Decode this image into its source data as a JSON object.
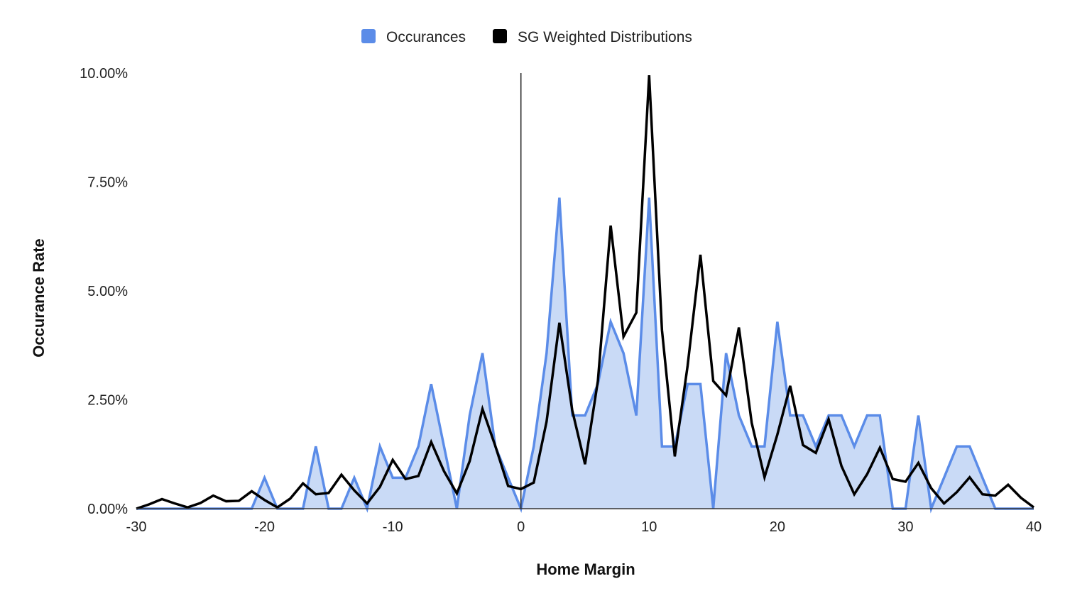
{
  "chart_data": {
    "type": "area",
    "title": "",
    "xlabel": "Home Margin",
    "ylabel": "Occurance Rate",
    "xlim": [
      -30,
      40
    ],
    "ylim": [
      0,
      10
    ],
    "x_ticks": [
      -30,
      -20,
      -10,
      0,
      10,
      20,
      30,
      40
    ],
    "y_ticks": [
      0,
      2.5,
      5,
      7.5,
      10
    ],
    "y_tick_labels": [
      "0.00%",
      "2.50%",
      "5.00%",
      "7.50%",
      "10.00%"
    ],
    "legend_position": "top",
    "grid": false,
    "vertical_reference_line": 0,
    "series": [
      {
        "name": "Occurances",
        "type": "area",
        "color": "#5b8ce8",
        "fill": "#c9daf6",
        "x": [
          -30,
          -29,
          -28,
          -27,
          -26,
          -25,
          -24,
          -23,
          -22,
          -21,
          -20,
          -19,
          -18,
          -17,
          -16,
          -15,
          -14,
          -13,
          -12,
          -11,
          -10,
          -9,
          -8,
          -7,
          -6,
          -5,
          -4,
          -3,
          -2,
          -1,
          0,
          1,
          2,
          3,
          4,
          5,
          6,
          7,
          8,
          9,
          10,
          11,
          12,
          13,
          14,
          15,
          16,
          17,
          18,
          19,
          20,
          21,
          22,
          23,
          24,
          25,
          26,
          27,
          28,
          29,
          30,
          31,
          32,
          33,
          34,
          35,
          36,
          37,
          38,
          39,
          40
        ],
        "values": [
          0,
          0,
          0,
          0,
          0,
          0,
          0,
          0,
          0,
          0,
          0.71,
          0,
          0,
          0,
          1.43,
          0,
          0,
          0.71,
          0,
          1.43,
          0.71,
          0.71,
          1.43,
          2.86,
          1.43,
          0,
          2.14,
          3.57,
          1.43,
          0.71,
          0,
          1.43,
          3.57,
          7.14,
          2.14,
          2.14,
          2.86,
          4.29,
          3.57,
          2.14,
          7.14,
          1.43,
          1.43,
          2.86,
          2.86,
          0,
          3.57,
          2.14,
          1.43,
          1.43,
          4.29,
          2.14,
          2.14,
          1.43,
          2.14,
          2.14,
          1.43,
          2.14,
          2.14,
          0,
          0,
          2.14,
          0,
          0.71,
          1.43,
          1.43,
          0.71,
          0,
          0,
          0,
          0
        ]
      },
      {
        "name": "SG Weighted Distributions",
        "type": "line",
        "color": "#000000",
        "x": [
          -30,
          -29,
          -28,
          -27,
          -26,
          -25,
          -24,
          -23,
          -22,
          -21,
          -20,
          -19,
          -18,
          -17,
          -16,
          -15,
          -14,
          -13,
          -12,
          -11,
          -10,
          -9,
          -8,
          -7,
          -6,
          -5,
          -4,
          -3,
          -2,
          -1,
          0,
          1,
          2,
          3,
          4,
          5,
          6,
          7,
          8,
          9,
          10,
          11,
          12,
          13,
          14,
          15,
          16,
          17,
          18,
          19,
          20,
          21,
          22,
          23,
          24,
          25,
          26,
          27,
          28,
          29,
          30,
          31,
          32,
          33,
          34,
          35,
          36,
          37,
          38,
          39,
          40
        ],
        "values": [
          0,
          0.1,
          0.22,
          0.12,
          0.03,
          0.13,
          0.3,
          0.17,
          0.18,
          0.4,
          0.2,
          0.03,
          0.23,
          0.58,
          0.33,
          0.36,
          0.78,
          0.42,
          0.12,
          0.5,
          1.12,
          0.68,
          0.75,
          1.53,
          0.86,
          0.35,
          1.09,
          2.29,
          1.44,
          0.52,
          0.45,
          0.6,
          2.0,
          4.27,
          2.26,
          1.02,
          2.93,
          6.5,
          3.95,
          4.5,
          9.95,
          4.1,
          1.2,
          3.28,
          5.83,
          2.93,
          2.6,
          4.16,
          1.97,
          0.72,
          1.7,
          2.82,
          1.46,
          1.28,
          2.05,
          0.98,
          0.33,
          0.79,
          1.4,
          0.68,
          0.62,
          1.05,
          0.47,
          0.12,
          0.38,
          0.72,
          0.33,
          0.3,
          0.55,
          0.25,
          0.03
        ]
      }
    ]
  }
}
